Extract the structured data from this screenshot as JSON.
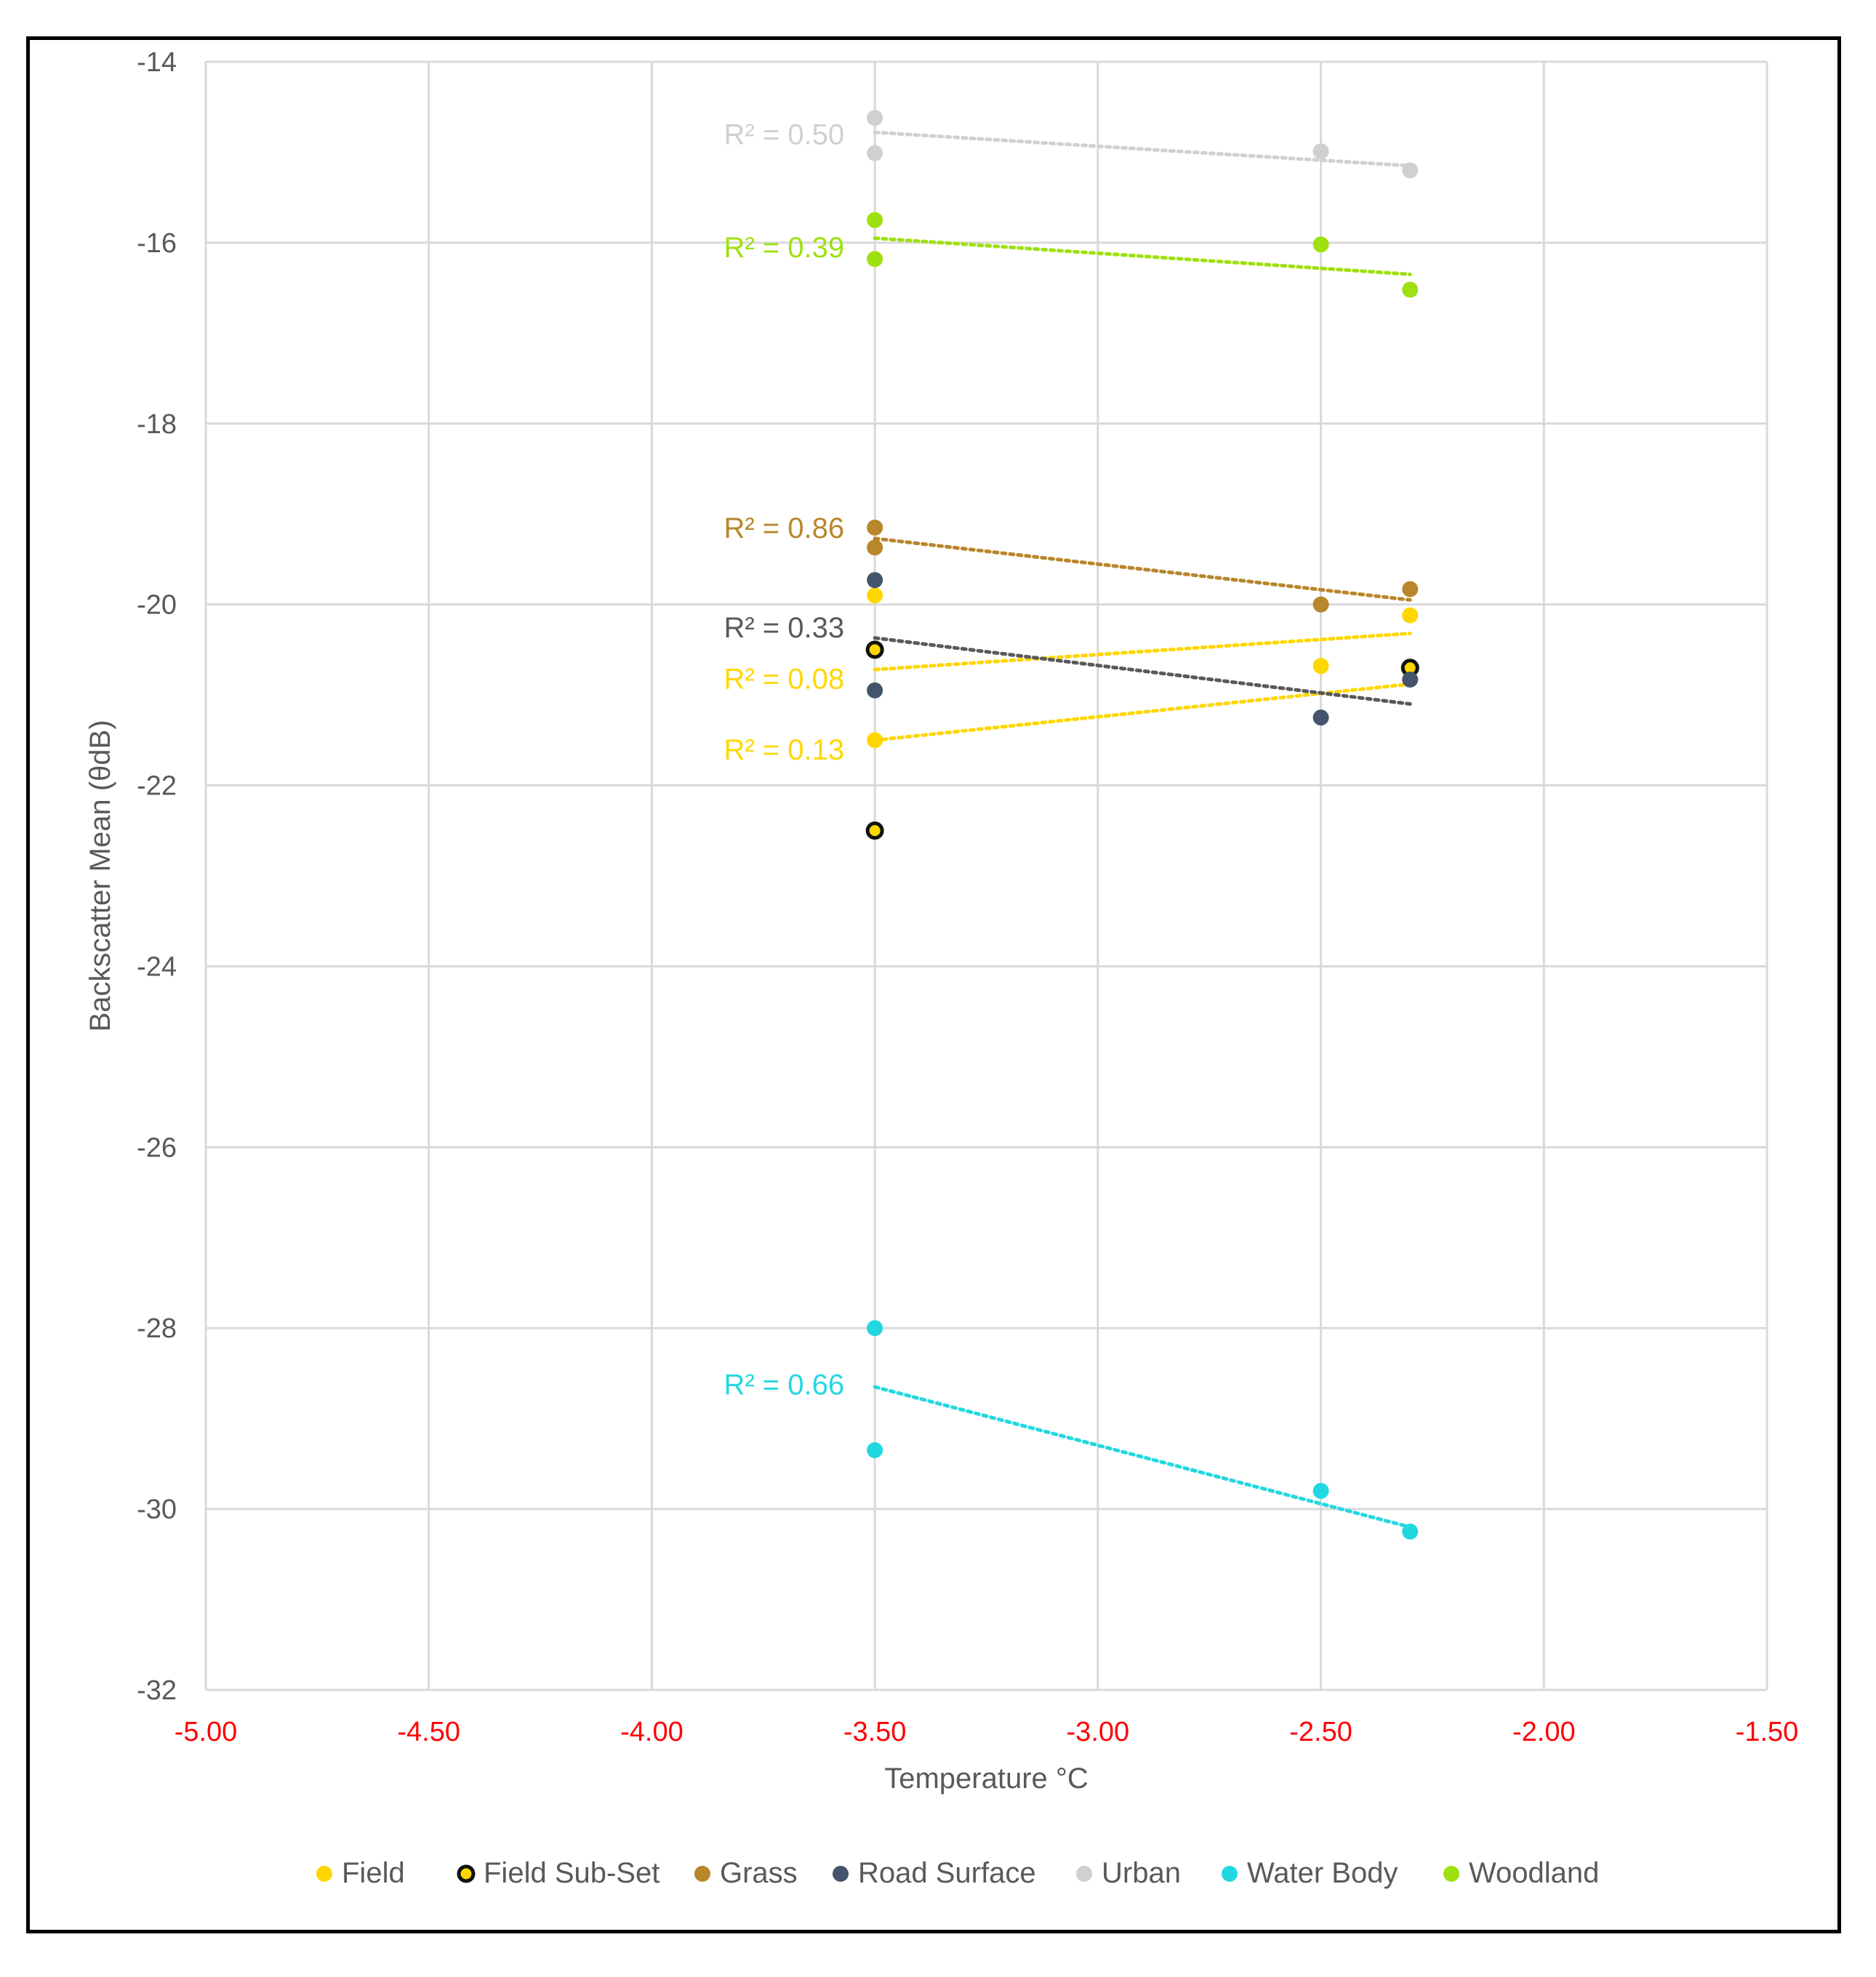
{
  "chart_data": {
    "type": "scatter",
    "title": "",
    "xlabel": "Temperature °C",
    "ylabel": "Backscatter Mean (θdB)",
    "xlim": [
      -5.0,
      -1.5
    ],
    "ylim": [
      -32,
      -14
    ],
    "xticks": [
      -5.0,
      -4.5,
      -4.0,
      -3.5,
      -3.0,
      -2.5,
      -2.0,
      -1.5
    ],
    "xtick_labels": [
      "-5.00",
      "-4.50",
      "-4.00",
      "-3.50",
      "-3.00",
      "-2.50",
      "-2.00",
      "-1.50"
    ],
    "yticks": [
      -14,
      -16,
      -18,
      -20,
      -22,
      -24,
      -26,
      -28,
      -30,
      -32
    ],
    "ytick_labels": [
      "-14",
      "-16",
      "-18",
      "-20",
      "-22",
      "-24",
      "-26",
      "-28",
      "-30",
      "-32"
    ],
    "grid": true,
    "legend_position": "bottom",
    "series": [
      {
        "name": "Field",
        "color": "#FFD700",
        "marker": "filled",
        "points": [
          [
            -3.5,
            -19.9
          ],
          [
            -3.5,
            -21.5
          ],
          [
            -2.5,
            -20.68
          ],
          [
            -2.3,
            -20.12
          ]
        ],
        "trendlines": [
          {
            "label": "R² = 0.08",
            "from": [
              -3.5,
              -20.72
            ],
            "to": [
              -2.3,
              -20.32
            ],
            "label_at": [
              -3.5,
              -20.82
            ]
          },
          {
            "label": "R² = 0.13",
            "from": [
              -3.5,
              -21.5
            ],
            "to": [
              -2.3,
              -20.88
            ],
            "label_at": [
              -3.5,
              -21.6
            ]
          }
        ]
      },
      {
        "name": "Field Sub-Set",
        "color": "#FFD700",
        "marker": "outlined",
        "points": [
          [
            -3.5,
            -20.5
          ],
          [
            -3.5,
            -22.5
          ],
          [
            -2.3,
            -20.7
          ]
        ],
        "trendlines": []
      },
      {
        "name": "Grass",
        "color": "#B8862B",
        "marker": "filled",
        "points": [
          [
            -3.5,
            -19.15
          ],
          [
            -3.5,
            -19.37
          ],
          [
            -2.5,
            -20.0
          ],
          [
            -2.3,
            -19.83
          ]
        ],
        "trendlines": [
          {
            "label": "R² = 0.86",
            "from": [
              -3.5,
              -19.27
            ],
            "to": [
              -2.3,
              -19.95
            ],
            "label_at": [
              -3.5,
              -19.15
            ]
          }
        ]
      },
      {
        "name": "Road Surface",
        "color": "#44546A",
        "marker": "filled",
        "points": [
          [
            -3.5,
            -19.73
          ],
          [
            -3.5,
            -20.95
          ],
          [
            -2.5,
            -21.25
          ],
          [
            -2.3,
            -20.83
          ]
        ],
        "trendlines": [
          {
            "label": "R² = 0.33",
            "from": [
              -3.5,
              -20.37
            ],
            "to": [
              -2.3,
              -21.1
            ],
            "label_at": [
              -3.5,
              -20.25
            ],
            "color": "#595959"
          }
        ]
      },
      {
        "name": "Urban",
        "color": "#D0D0D0",
        "marker": "filled",
        "points": [
          [
            -3.5,
            -14.62
          ],
          [
            -3.5,
            -15.01
          ],
          [
            -2.5,
            -14.99
          ],
          [
            -2.3,
            -15.2
          ]
        ],
        "trendlines": [
          {
            "label": "R² = 0.50",
            "from": [
              -3.5,
              -14.78
            ],
            "to": [
              -2.3,
              -15.15
            ],
            "label_at": [
              -3.5,
              -14.8
            ]
          }
        ]
      },
      {
        "name": "Water Body",
        "color": "#22D8E0",
        "marker": "filled",
        "points": [
          [
            -3.5,
            -28.0
          ],
          [
            -3.5,
            -29.35
          ],
          [
            -2.5,
            -29.8
          ],
          [
            -2.3,
            -30.25
          ]
        ],
        "trendlines": [
          {
            "label": "R² = 0.66",
            "from": [
              -3.5,
              -28.65
            ],
            "to": [
              -2.3,
              -30.2
            ],
            "label_at": [
              -3.5,
              -28.62
            ]
          }
        ]
      },
      {
        "name": "Woodland",
        "color": "#9EE010",
        "marker": "filled",
        "points": [
          [
            -3.5,
            -15.75
          ],
          [
            -3.5,
            -16.18
          ],
          [
            -2.5,
            -16.02
          ],
          [
            -2.3,
            -16.52
          ]
        ],
        "trendlines": [
          {
            "label": "R² = 0.39",
            "from": [
              -3.5,
              -15.95
            ],
            "to": [
              -2.3,
              -16.35
            ],
            "label_at": [
              -3.5,
              -16.05
            ]
          }
        ]
      }
    ]
  }
}
